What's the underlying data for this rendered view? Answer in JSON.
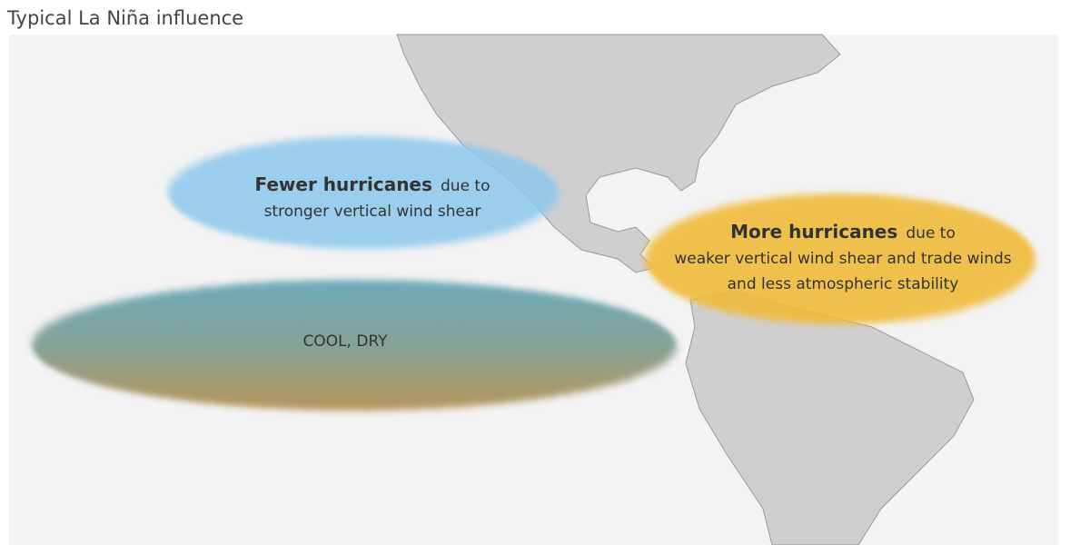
{
  "header": {
    "title": "Typical La Niña influence"
  },
  "regions": [
    {
      "headline": "Fewer hurricanes",
      "suffix": "due to",
      "lines": [
        "stronger vertical wind shear"
      ]
    },
    {
      "headline": "More hurricanes",
      "suffix": "due to",
      "lines": [
        "weaker vertical wind shear and trade winds",
        "and less atmospheric stability"
      ]
    },
    {
      "label": "COOL, DRY"
    }
  ]
}
